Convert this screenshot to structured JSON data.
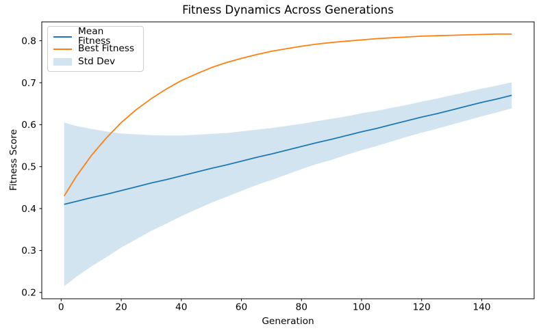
{
  "chart_data": {
    "type": "line",
    "title": "Fitness Dynamics Across Generations",
    "xlabel": "Generation",
    "ylabel": "Fitness Score",
    "x": [
      1,
      5,
      10,
      15,
      20,
      25,
      30,
      35,
      40,
      45,
      50,
      55,
      60,
      65,
      70,
      75,
      80,
      85,
      90,
      95,
      100,
      105,
      110,
      115,
      120,
      125,
      130,
      135,
      140,
      145,
      150
    ],
    "series": [
      {
        "name": "Mean Fitness",
        "color": "#1f77b4",
        "values": [
          0.41,
          0.417,
          0.426,
          0.434,
          0.443,
          0.452,
          0.461,
          0.469,
          0.478,
          0.487,
          0.496,
          0.504,
          0.513,
          0.522,
          0.53,
          0.539,
          0.548,
          0.557,
          0.565,
          0.574,
          0.583,
          0.591,
          0.6,
          0.609,
          0.618,
          0.626,
          0.635,
          0.644,
          0.653,
          0.661,
          0.67
        ]
      },
      {
        "name": "Best Fitness",
        "color": "#ff7f0e",
        "values": [
          0.43,
          0.476,
          0.526,
          0.568,
          0.605,
          0.636,
          0.662,
          0.685,
          0.705,
          0.721,
          0.736,
          0.748,
          0.758,
          0.767,
          0.775,
          0.781,
          0.787,
          0.792,
          0.796,
          0.799,
          0.802,
          0.805,
          0.807,
          0.809,
          0.811,
          0.812,
          0.813,
          0.814,
          0.815,
          0.816,
          0.816
        ]
      }
    ],
    "band": {
      "name": "Std Dev",
      "color": "#1f77b4",
      "opacity": 0.2,
      "center": "Mean Fitness",
      "std": [
        0.195,
        0.18,
        0.164,
        0.15,
        0.136,
        0.125,
        0.114,
        0.105,
        0.096,
        0.089,
        0.082,
        0.076,
        0.071,
        0.066,
        0.062,
        0.058,
        0.054,
        0.051,
        0.049,
        0.046,
        0.044,
        0.042,
        0.04,
        0.038,
        0.037,
        0.036,
        0.035,
        0.034,
        0.033,
        0.032,
        0.031
      ]
    },
    "x_ticks": [
      0,
      20,
      40,
      60,
      80,
      100,
      120,
      140
    ],
    "x_tick_labels": [
      "0",
      "20",
      "40",
      "60",
      "80",
      "100",
      "120",
      "140"
    ],
    "y_ticks": [
      0.2,
      0.3,
      0.4,
      0.5,
      0.6,
      0.7,
      0.8
    ],
    "y_tick_labels": [
      "0.2",
      "0.3",
      "0.4",
      "0.5",
      "0.6",
      "0.7",
      "0.8"
    ],
    "xlim": [
      -6.45,
      157.45
    ],
    "ylim": [
      0.185,
      0.845
    ],
    "grid": false,
    "legend_position": "upper-left"
  },
  "legend": {
    "entries": [
      {
        "label": "Mean Fitness",
        "swatch": "line",
        "color": "#1f77b4",
        "opacity": 1
      },
      {
        "label": "Best Fitness",
        "swatch": "line",
        "color": "#ff7f0e",
        "opacity": 1
      },
      {
        "label": "Std Dev",
        "swatch": "patch",
        "color": "#1f77b4",
        "opacity": 0.2
      }
    ]
  },
  "colors": {
    "spine": "#000000",
    "tick_label": "#000000",
    "background": "#ffffff"
  }
}
